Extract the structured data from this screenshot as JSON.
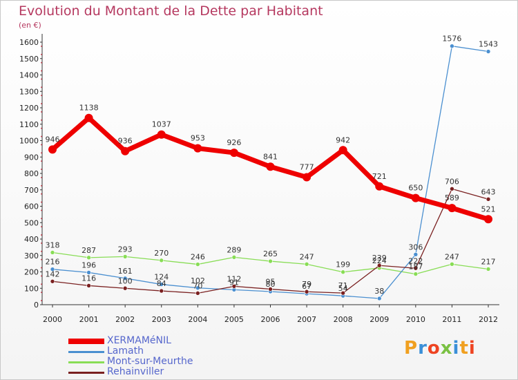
{
  "title": "Evolution du Montant de la Dette par Habitant",
  "subtitle": "(en €)",
  "logo_text": "Proxiti",
  "chart_data": {
    "type": "line",
    "title": "Evolution du Montant de la Dette par Habitant",
    "subtitle": "(en €)",
    "xlabel": "",
    "ylabel": "",
    "x": [
      "2000",
      "2001",
      "2002",
      "2003",
      "2004",
      "2005",
      "2006",
      "2007",
      "2008",
      "2009",
      "2010",
      "2011",
      "2012"
    ],
    "ylim": [
      0,
      1650
    ],
    "yticks": [
      0,
      100,
      200,
      300,
      400,
      500,
      600,
      700,
      800,
      900,
      1000,
      1100,
      1200,
      1300,
      1400,
      1500,
      1600
    ],
    "grid": false,
    "legend_position": "bottom-left",
    "series": [
      {
        "name": "XERMAMéNIL",
        "color": "#ee0000",
        "values": [
          946,
          1138,
          936,
          1037,
          953,
          926,
          841,
          777,
          942,
          721,
          650,
          589,
          521
        ]
      },
      {
        "name": "Lamath",
        "color": "#4a8fd0",
        "values": [
          216,
          196,
          161,
          124,
          102,
          91,
          80,
          67,
          54,
          38,
          306,
          1576,
          1543
        ]
      },
      {
        "name": "Mont-sur-Meurthe",
        "color": "#88dd55",
        "values": [
          318,
          287,
          293,
          270,
          246,
          289,
          265,
          247,
          199,
          224,
          187,
          247,
          217
        ]
      },
      {
        "name": "Rehainviller",
        "color": "#7a2020",
        "values": [
          142,
          116,
          100,
          84,
          70,
          112,
          95,
          79,
          71,
          239,
          222,
          706,
          643
        ]
      }
    ]
  }
}
